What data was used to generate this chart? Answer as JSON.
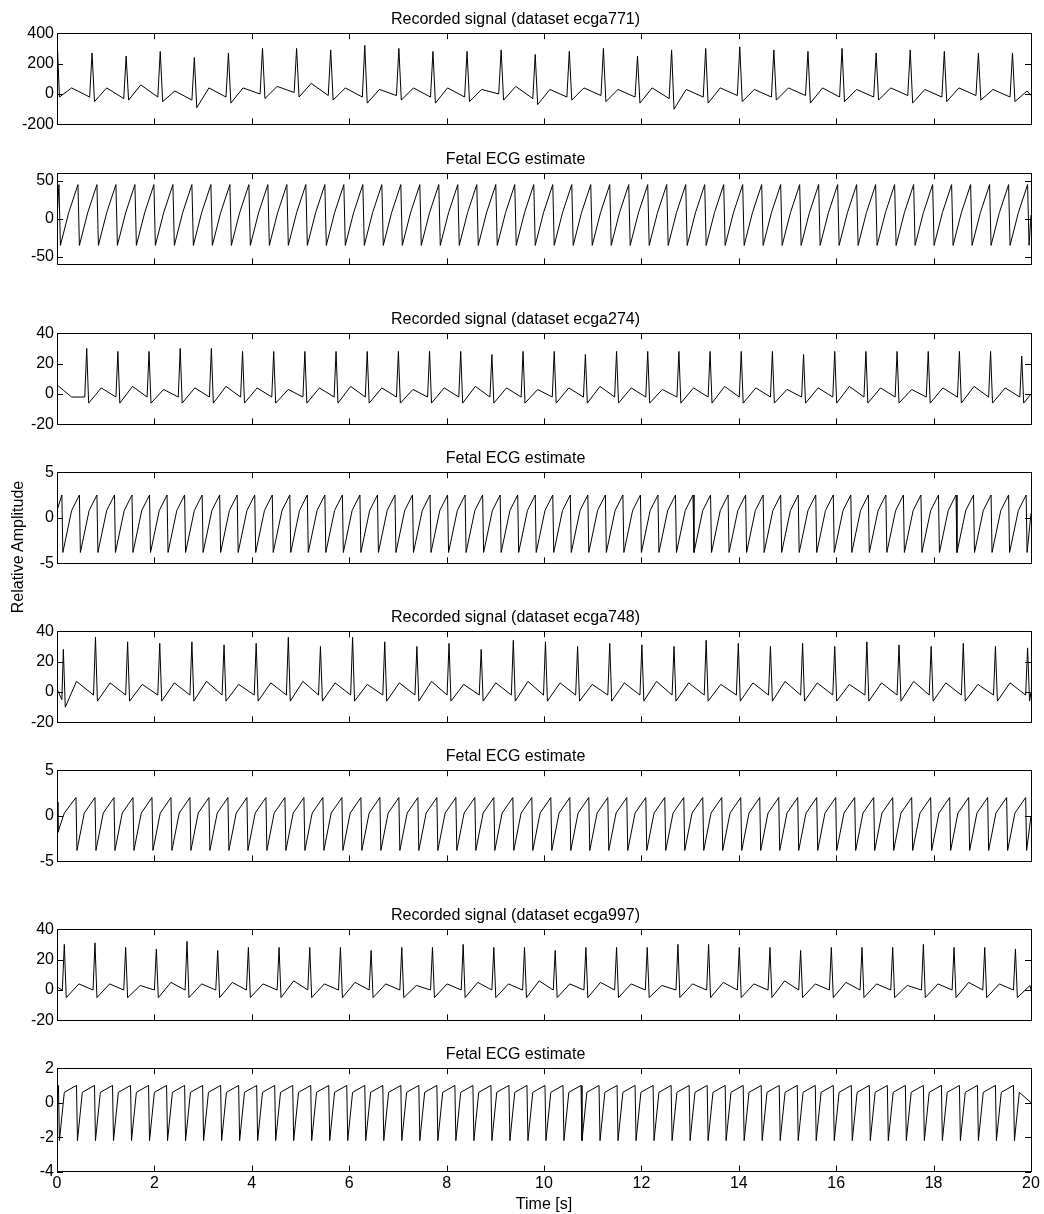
{
  "chart_data": [
    {
      "type": "line",
      "title": "Recorded signal (dataset ecga771)",
      "color": "#000000",
      "marker": "none",
      "tick_labels": "y",
      "xlim": [
        0,
        20
      ],
      "xticks": [
        0,
        2,
        4,
        6,
        8,
        10,
        12,
        14,
        16,
        18,
        20
      ],
      "ylim": [
        -200,
        400
      ],
      "yticks": [
        -200,
        0,
        200,
        400
      ],
      "x": [
        0,
        0.05,
        0.3,
        0.67,
        0.72,
        0.77,
        1.02,
        1.37,
        1.42,
        1.47,
        1.72,
        2.07,
        2.12,
        2.17,
        2.42,
        2.77,
        2.82,
        2.87,
        3.12,
        3.47,
        3.52,
        3.57,
        3.82,
        4.17,
        4.22,
        4.27,
        4.52,
        4.87,
        4.92,
        4.97,
        5.22,
        5.57,
        5.62,
        5.67,
        5.92,
        6.27,
        6.32,
        6.37,
        6.62,
        6.97,
        7.02,
        7.07,
        7.32,
        7.67,
        7.72,
        7.77,
        8.02,
        8.37,
        8.42,
        8.47,
        8.72,
        9.07,
        9.12,
        9.17,
        9.42,
        9.77,
        9.82,
        9.87,
        10.12,
        10.47,
        10.52,
        10.57,
        10.82,
        11.17,
        11.22,
        11.27,
        11.52,
        11.87,
        11.92,
        11.97,
        12.22,
        12.57,
        12.62,
        12.67,
        12.92,
        13.27,
        13.32,
        13.37,
        13.62,
        13.97,
        14.02,
        14.07,
        14.32,
        14.67,
        14.72,
        14.77,
        15.02,
        15.37,
        15.42,
        15.47,
        15.72,
        16.07,
        16.12,
        16.17,
        16.42,
        16.77,
        16.82,
        16.87,
        17.12,
        17.47,
        17.52,
        17.57,
        17.82,
        18.17,
        18.22,
        18.27,
        18.52,
        18.87,
        18.92,
        18.97,
        19.22,
        19.57,
        19.62,
        19.67,
        19.92,
        20
      ],
      "values": [
        380,
        -20,
        40,
        -20,
        270,
        -50,
        40,
        -30,
        250,
        -40,
        60,
        -20,
        280,
        -50,
        20,
        -40,
        240,
        -90,
        40,
        -20,
        270,
        -60,
        40,
        0,
        300,
        -30,
        50,
        10,
        300,
        -20,
        70,
        -10,
        290,
        -40,
        40,
        -20,
        320,
        -60,
        30,
        -10,
        300,
        -40,
        40,
        -20,
        280,
        -60,
        40,
        -20,
        280,
        -50,
        30,
        0,
        290,
        -40,
        50,
        -30,
        260,
        -70,
        30,
        -20,
        280,
        -40,
        40,
        -10,
        300,
        -50,
        30,
        -20,
        250,
        -60,
        40,
        -30,
        290,
        -100,
        30,
        -20,
        300,
        -60,
        40,
        -10,
        310,
        -50,
        30,
        -20,
        290,
        -40,
        40,
        -10,
        280,
        -60,
        40,
        -20,
        300,
        -50,
        30,
        -20,
        270,
        -40,
        40,
        -10,
        290,
        -60,
        30,
        -20,
        280,
        -50,
        40,
        -10,
        270,
        -40,
        30,
        -20,
        270,
        -50,
        20,
        -10
      ]
    },
    {
      "type": "line",
      "title": "Fetal ECG estimate",
      "color": "#000000",
      "marker": "none",
      "tick_labels": "y",
      "xlim": [
        0,
        20
      ],
      "xticks": [
        0,
        2,
        4,
        6,
        8,
        10,
        12,
        14,
        16,
        18,
        20
      ],
      "ylim": [
        -60,
        60
      ],
      "yticks": [
        -50,
        0,
        50
      ],
      "x": [
        0,
        0.04,
        0.07,
        0.24,
        0.43,
        0.46,
        0.63,
        0.82,
        0.85,
        1.02,
        1.21,
        1.24,
        1.41,
        1.6,
        1.63,
        1.8,
        1.99,
        2.02,
        2.19,
        2.38,
        2.41,
        2.58,
        2.77,
        2.8,
        2.97,
        3.16,
        3.19,
        3.36,
        3.55,
        3.58,
        3.75,
        3.94,
        3.97,
        4.14,
        4.33,
        4.36,
        4.53,
        4.72,
        4.75,
        4.92,
        5.11,
        5.14,
        5.31,
        5.5,
        5.53,
        5.7,
        5.89,
        5.92,
        6.09,
        6.28,
        6.31,
        6.48,
        6.67,
        6.7,
        6.87,
        7.06,
        7.09,
        7.26,
        7.45,
        7.48,
        7.65,
        7.84,
        7.87,
        8.04,
        8.23,
        8.26,
        8.43,
        8.62,
        8.65,
        8.82,
        9.01,
        9.04,
        9.21,
        9.4,
        9.43,
        9.6,
        9.79,
        9.82,
        9.99,
        10.18,
        10.21,
        10.38,
        10.57,
        10.6,
        10.77,
        10.96,
        10.99,
        11.16,
        11.35,
        11.38,
        11.55,
        11.74,
        11.77,
        11.94,
        12.13,
        12.16,
        12.33,
        12.52,
        12.55,
        12.72,
        12.91,
        12.94,
        13.11,
        13.3,
        13.33,
        13.5,
        13.69,
        13.72,
        13.89,
        14.08,
        14.11,
        14.28,
        14.47,
        14.5,
        14.67,
        14.86,
        14.89,
        15.06,
        15.25,
        15.28,
        15.45,
        15.64,
        15.67,
        15.84,
        16.03,
        16.06,
        16.23,
        16.42,
        16.45,
        16.62,
        16.81,
        16.84,
        17.01,
        17.2,
        17.23,
        17.4,
        17.59,
        17.62,
        17.79,
        17.98,
        18.01,
        18.18,
        18.37,
        18.4,
        18.57,
        18.76,
        18.79,
        18.96,
        19.15,
        19.18,
        19.35,
        19.54,
        19.57,
        19.74,
        19.93,
        19.96,
        20
      ],
      "values": [
        0,
        45,
        -35,
        8,
        45,
        -35,
        8,
        45,
        -35,
        8,
        45,
        -35,
        8,
        45,
        -35,
        8,
        45,
        -35,
        8,
        45,
        -35,
        8,
        45,
        -35,
        8,
        45,
        -35,
        8,
        45,
        -35,
        8,
        45,
        -35,
        8,
        45,
        -35,
        8,
        45,
        -35,
        8,
        45,
        -35,
        8,
        45,
        -35,
        8,
        45,
        -35,
        8,
        45,
        -35,
        8,
        45,
        -35,
        8,
        45,
        -35,
        8,
        45,
        -35,
        8,
        45,
        -35,
        8,
        45,
        -35,
        8,
        45,
        -35,
        8,
        45,
        -35,
        8,
        45,
        -35,
        8,
        45,
        -35,
        8,
        45,
        -35,
        8,
        45,
        -35,
        8,
        45,
        -35,
        8,
        45,
        -35,
        8,
        45,
        -35,
        8,
        45,
        -35,
        8,
        45,
        -35,
        8,
        45,
        -35,
        8,
        45,
        -35,
        8,
        45,
        -35,
        8,
        45,
        -35,
        8,
        45,
        -35,
        8,
        45,
        -35,
        8,
        45,
        -35,
        8,
        45,
        -35,
        8,
        45,
        -35,
        8,
        45,
        -35,
        8,
        45,
        -35,
        8,
        45,
        -35,
        8,
        45,
        -35,
        8,
        45,
        -35,
        8,
        45,
        -35,
        8,
        45,
        -35,
        8,
        45,
        -35,
        8,
        45,
        -35,
        8,
        45,
        -35,
        5
      ]
    },
    {
      "type": "line",
      "title": "Recorded signal (dataset ecga274)",
      "color": "#000000",
      "marker": "none",
      "tick_labels": "y",
      "xlim": [
        0,
        20
      ],
      "xticks": [
        0,
        2,
        4,
        6,
        8,
        10,
        12,
        14,
        16,
        18,
        20
      ],
      "ylim": [
        -20,
        40
      ],
      "yticks": [
        -20,
        0,
        20,
        40
      ],
      "x": [
        0,
        0.3,
        0.57,
        0.61,
        0.65,
        0.91,
        1.21,
        1.25,
        1.29,
        1.55,
        1.85,
        1.89,
        1.93,
        2.19,
        2.49,
        2.53,
        2.57,
        2.83,
        3.13,
        3.17,
        3.21,
        3.47,
        3.77,
        3.81,
        3.85,
        4.11,
        4.41,
        4.45,
        4.49,
        4.75,
        5.05,
        5.09,
        5.13,
        5.39,
        5.69,
        5.73,
        5.77,
        6.03,
        6.33,
        6.37,
        6.41,
        6.67,
        6.97,
        7.01,
        7.05,
        7.31,
        7.61,
        7.65,
        7.69,
        7.95,
        8.25,
        8.29,
        8.33,
        8.59,
        8.89,
        8.93,
        8.97,
        9.23,
        9.53,
        9.57,
        9.61,
        9.87,
        10.17,
        10.21,
        10.25,
        10.51,
        10.81,
        10.85,
        10.89,
        11.15,
        11.45,
        11.49,
        11.53,
        11.79,
        12.09,
        12.13,
        12.17,
        12.43,
        12.73,
        12.77,
        12.81,
        13.07,
        13.37,
        13.41,
        13.45,
        13.71,
        14.01,
        14.05,
        14.09,
        14.35,
        14.65,
        14.69,
        14.73,
        14.99,
        15.29,
        15.33,
        15.37,
        15.63,
        15.93,
        15.97,
        16.01,
        16.27,
        16.57,
        16.61,
        16.65,
        16.91,
        17.21,
        17.25,
        17.29,
        17.55,
        17.85,
        17.89,
        17.93,
        18.19,
        18.49,
        18.53,
        18.57,
        18.83,
        19.13,
        19.17,
        19.21,
        19.47,
        19.77,
        19.81,
        19.85,
        20
      ],
      "values": [
        6,
        -2,
        -2,
        30,
        -6,
        4,
        -2,
        28,
        -6,
        5,
        -2,
        28,
        -6,
        3,
        -2,
        30,
        -6,
        4,
        -2,
        30,
        -6,
        5,
        -2,
        28,
        -6,
        4,
        -2,
        28,
        -6,
        3,
        -2,
        28,
        -6,
        4,
        -2,
        28,
        -6,
        5,
        -2,
        28,
        -6,
        4,
        -2,
        28,
        -6,
        3,
        -2,
        28,
        -6,
        4,
        -2,
        28,
        -6,
        5,
        -2,
        26,
        -6,
        4,
        -2,
        28,
        -6,
        3,
        -2,
        28,
        -6,
        4,
        -2,
        26,
        -6,
        5,
        -2,
        28,
        -6,
        4,
        -2,
        28,
        -6,
        3,
        -2,
        28,
        -6,
        4,
        -2,
        28,
        -6,
        5,
        -2,
        28,
        -6,
        4,
        -2,
        28,
        -6,
        3,
        -2,
        26,
        -6,
        4,
        -2,
        28,
        -6,
        5,
        -2,
        28,
        -6,
        4,
        -2,
        28,
        -6,
        3,
        -2,
        28,
        -6,
        4,
        -2,
        28,
        -6,
        5,
        -2,
        28,
        -6,
        4,
        -2,
        25,
        -6,
        0
      ]
    },
    {
      "type": "line",
      "title": "Fetal ECG estimate",
      "ylabel": "Relative Amplitude",
      "color": "#000000",
      "marker": "none",
      "tick_labels": "y",
      "xlim": [
        0,
        20
      ],
      "xticks": [
        0,
        2,
        4,
        6,
        8,
        10,
        12,
        14,
        16,
        18,
        20
      ],
      "ylim": [
        -5,
        5
      ],
      "yticks": [
        -5,
        0,
        5
      ],
      "x": [
        0,
        0.1,
        0.12,
        0.3,
        0.46,
        0.48,
        0.66,
        0.82,
        0.84,
        1.02,
        1.18,
        1.2,
        1.38,
        1.54,
        1.56,
        1.74,
        1.9,
        1.92,
        2.1,
        2.26,
        2.28,
        2.46,
        2.62,
        2.64,
        2.82,
        2.98,
        3.0,
        3.18,
        3.34,
        3.36,
        3.54,
        3.7,
        3.72,
        3.9,
        4.06,
        4.08,
        4.26,
        4.42,
        4.44,
        4.62,
        4.78,
        4.8,
        4.98,
        5.14,
        5.16,
        5.34,
        5.5,
        5.52,
        5.7,
        5.86,
        5.88,
        6.06,
        6.22,
        6.24,
        6.42,
        6.58,
        6.6,
        6.78,
        6.94,
        6.96,
        7.14,
        7.3,
        7.32,
        7.5,
        7.66,
        7.68,
        7.86,
        8.02,
        8.04,
        8.22,
        8.38,
        8.4,
        8.58,
        8.74,
        8.76,
        8.94,
        9.1,
        9.12,
        9.3,
        9.46,
        9.48,
        9.66,
        9.82,
        9.84,
        10.02,
        10.18,
        10.2,
        10.38,
        10.54,
        10.56,
        10.74,
        10.9,
        10.92,
        11.1,
        11.26,
        11.28,
        11.46,
        11.62,
        11.64,
        11.82,
        11.98,
        12.0,
        12.18,
        12.34,
        12.36,
        12.54,
        12.7,
        12.72,
        12.9,
        13.06,
        13.08,
        13.26,
        13.42,
        13.44,
        13.62,
        13.78,
        13.8,
        13.98,
        14.14,
        14.16,
        14.34,
        14.5,
        14.52,
        14.7,
        14.86,
        14.88,
        15.06,
        15.22,
        15.24,
        15.42,
        15.58,
        15.6,
        15.78,
        15.94,
        15.96,
        16.14,
        16.3,
        16.32,
        16.5,
        16.66,
        16.68,
        16.86,
        17.02,
        17.04,
        17.22,
        17.38,
        17.4,
        17.58,
        17.74,
        17.76,
        17.94,
        18.1,
        18.12,
        18.3,
        18.46,
        18.48,
        18.66,
        18.82,
        18.84,
        19.02,
        19.18,
        19.2,
        19.38,
        19.54,
        19.56,
        19.74,
        19.9,
        19.92,
        20
      ],
      "values": [
        0.8,
        2.5,
        -3.8,
        0.8,
        2.5,
        -3.8,
        0.8,
        2.5,
        -3.8,
        0.8,
        2.5,
        -3.8,
        0.8,
        2.5,
        -3.8,
        0.8,
        2.5,
        -3.8,
        0.8,
        2.5,
        -3.8,
        0.8,
        2.5,
        -3.8,
        0.8,
        2.5,
        -3.8,
        0.8,
        2.5,
        -3.8,
        0.8,
        2.5,
        -3.8,
        0.8,
        2.5,
        -3.8,
        0.8,
        2.5,
        -3.8,
        0.8,
        2.5,
        -3.8,
        0.8,
        2.5,
        -3.8,
        0.8,
        2.5,
        -3.8,
        0.8,
        2.5,
        -3.8,
        0.8,
        2.5,
        -3.8,
        0.8,
        2.5,
        -3.8,
        0.8,
        2.5,
        -3.8,
        0.8,
        2.5,
        -3.8,
        0.8,
        2.5,
        -3.8,
        0.8,
        2.5,
        -3.8,
        0.8,
        2.5,
        -3.8,
        0.8,
        2.5,
        -3.8,
        0.8,
        2.5,
        -3.8,
        0.8,
        2.5,
        -3.8,
        0.8,
        2.5,
        -3.8,
        0.8,
        2.5,
        -3.8,
        0.8,
        2.5,
        -3.8,
        0.8,
        2.5,
        -3.8,
        0.8,
        2.5,
        -3.8,
        0.8,
        2.5,
        -3.8,
        0.8,
        2.5,
        -3.8,
        0.8,
        2.5,
        -3.8,
        0.8,
        2.5,
        -3.8,
        0.8,
        2.5,
        -3.8,
        0.8,
        2.5,
        -3.8,
        0.8,
        2.5,
        -3.8,
        0.8,
        2.5,
        -3.8,
        0.8,
        2.5,
        -3.8,
        0.8,
        2.5,
        -3.8,
        0.8,
        2.5,
        -3.8,
        0.8,
        2.5,
        -3.8,
        0.8,
        2.5,
        -3.8,
        0.8,
        2.5,
        -3.8,
        0.8,
        2.5,
        -3.8,
        0.8,
        2.5,
        -3.8,
        0.8,
        2.5,
        -3.8,
        0.8,
        2.5,
        -3.8,
        0.8,
        2.5,
        -3.8,
        0.8,
        2.5,
        -3.8,
        0.8,
        2.5,
        -3.8,
        0.8,
        2.5,
        -3.8,
        0.8,
        2.5,
        -3.8,
        0.8,
        2.5,
        -3.8,
        0.5
      ]
    },
    {
      "type": "line",
      "title": "Recorded signal (dataset ecga748)",
      "color": "#000000",
      "marker": "none",
      "tick_labels": "y",
      "xlim": [
        0,
        20
      ],
      "xticks": [
        0,
        2,
        4,
        6,
        8,
        10,
        12,
        14,
        16,
        18,
        20
      ],
      "ylim": [
        -20,
        40
      ],
      "yticks": [
        -20,
        0,
        20,
        40
      ],
      "x": [
        0,
        0.1,
        0.13,
        0.17,
        0.4,
        0.75,
        0.79,
        0.83,
        1.09,
        1.41,
        1.45,
        1.49,
        1.75,
        2.07,
        2.11,
        2.15,
        2.41,
        2.73,
        2.77,
        2.81,
        3.07,
        3.39,
        3.43,
        3.47,
        3.73,
        4.05,
        4.09,
        4.13,
        4.39,
        4.71,
        4.75,
        4.79,
        5.05,
        5.37,
        5.41,
        5.45,
        5.71,
        6.03,
        6.07,
        6.11,
        6.37,
        6.69,
        6.73,
        6.77,
        7.03,
        7.35,
        7.39,
        7.43,
        7.69,
        8.01,
        8.05,
        8.09,
        8.35,
        8.67,
        8.71,
        8.75,
        9.01,
        9.33,
        9.37,
        9.41,
        9.67,
        9.99,
        10.03,
        10.07,
        10.33,
        10.65,
        10.69,
        10.73,
        10.99,
        11.31,
        11.35,
        11.39,
        11.65,
        11.97,
        12.01,
        12.05,
        12.31,
        12.63,
        12.67,
        12.71,
        12.97,
        13.29,
        13.33,
        13.37,
        13.63,
        13.95,
        13.99,
        14.03,
        14.29,
        14.61,
        14.65,
        14.69,
        14.95,
        15.27,
        15.31,
        15.35,
        15.61,
        15.93,
        15.97,
        16.01,
        16.27,
        16.59,
        16.63,
        16.67,
        16.93,
        17.25,
        17.29,
        17.33,
        17.59,
        17.91,
        17.95,
        17.99,
        18.25,
        18.57,
        18.61,
        18.65,
        18.91,
        19.23,
        19.27,
        19.31,
        19.57,
        19.89,
        19.93,
        19.97,
        20
      ],
      "values": [
        2,
        -5,
        28,
        -10,
        7,
        -2,
        36,
        -6,
        6,
        -2,
        33,
        -6,
        5,
        -2,
        32,
        -6,
        6,
        -2,
        33,
        -6,
        7,
        -2,
        31,
        -6,
        5,
        -2,
        32,
        -6,
        6,
        -2,
        36,
        -6,
        7,
        -2,
        30,
        -6,
        6,
        -2,
        36,
        -6,
        5,
        -2,
        33,
        -6,
        6,
        -2,
        30,
        -6,
        7,
        -2,
        32,
        -6,
        5,
        -2,
        28,
        -6,
        6,
        -2,
        34,
        -6,
        7,
        -2,
        33,
        -6,
        6,
        -2,
        30,
        -6,
        5,
        -2,
        32,
        -6,
        6,
        -2,
        31,
        -6,
        7,
        -2,
        30,
        -6,
        6,
        -2,
        34,
        -6,
        5,
        -2,
        32,
        -6,
        6,
        -2,
        30,
        -6,
        7,
        -2,
        32,
        -6,
        6,
        -2,
        30,
        -6,
        5,
        -2,
        33,
        -6,
        6,
        -2,
        31,
        -6,
        7,
        -2,
        30,
        -6,
        6,
        -2,
        32,
        -6,
        5,
        -2,
        30,
        -6,
        6,
        -2,
        29,
        -6,
        0
      ]
    },
    {
      "type": "line",
      "title": "Fetal ECG estimate",
      "color": "#000000",
      "marker": "none",
      "tick_labels": "y",
      "xlim": [
        0,
        20
      ],
      "xticks": [
        0,
        2,
        4,
        6,
        8,
        10,
        12,
        14,
        16,
        18,
        20
      ],
      "ylim": [
        -5,
        5
      ],
      "yticks": [
        -5,
        0,
        5
      ],
      "x": [
        0,
        0.02,
        0.15,
        0.39,
        0.41,
        0.56,
        0.78,
        0.8,
        0.95,
        1.17,
        1.19,
        1.34,
        1.56,
        1.58,
        1.73,
        1.95,
        1.97,
        2.12,
        2.34,
        2.36,
        2.51,
        2.73,
        2.75,
        2.9,
        3.12,
        3.14,
        3.29,
        3.51,
        3.53,
        3.68,
        3.9,
        3.92,
        4.07,
        4.29,
        4.31,
        4.46,
        4.68,
        4.7,
        4.85,
        5.07,
        5.09,
        5.24,
        5.46,
        5.48,
        5.63,
        5.85,
        5.87,
        6.02,
        6.24,
        6.26,
        6.41,
        6.63,
        6.65,
        6.8,
        7.02,
        7.04,
        7.19,
        7.41,
        7.43,
        7.58,
        7.8,
        7.82,
        7.97,
        8.19,
        8.21,
        8.36,
        8.58,
        8.6,
        8.75,
        8.97,
        8.99,
        9.14,
        9.36,
        9.38,
        9.53,
        9.75,
        9.77,
        9.92,
        10.14,
        10.16,
        10.31,
        10.53,
        10.55,
        10.7,
        10.92,
        10.94,
        11.09,
        11.31,
        11.33,
        11.48,
        11.7,
        11.72,
        11.87,
        12.09,
        12.11,
        12.26,
        12.48,
        12.5,
        12.65,
        12.87,
        12.89,
        13.04,
        13.26,
        13.28,
        13.43,
        13.65,
        13.67,
        13.82,
        14.04,
        14.06,
        14.21,
        14.43,
        14.45,
        14.6,
        14.82,
        14.84,
        14.99,
        15.21,
        15.23,
        15.38,
        15.6,
        15.62,
        15.77,
        15.99,
        16.01,
        16.16,
        16.38,
        16.4,
        16.55,
        16.77,
        16.79,
        16.94,
        17.16,
        17.18,
        17.33,
        17.55,
        17.57,
        17.72,
        17.94,
        17.96,
        18.11,
        18.33,
        18.35,
        18.5,
        18.72,
        18.74,
        18.89,
        19.11,
        19.13,
        19.28,
        19.5,
        19.52,
        19.67,
        19.89,
        19.91,
        20
      ],
      "values": [
        1.5,
        -1.8,
        0.3,
        2,
        -3.8,
        0.3,
        2,
        -3.8,
        0.3,
        2,
        -3.8,
        0.3,
        2,
        -3.8,
        0.3,
        2,
        -3.8,
        0.3,
        2,
        -3.8,
        0.3,
        2,
        -3.8,
        0.3,
        2,
        -3.8,
        0.3,
        2,
        -3.8,
        0.3,
        2,
        -3.8,
        0.3,
        2,
        -3.8,
        0.3,
        2,
        -3.8,
        0.3,
        2,
        -3.8,
        0.3,
        2,
        -3.8,
        0.3,
        2,
        -3.8,
        0.3,
        2,
        -3.8,
        0.3,
        2,
        -3.8,
        0.3,
        2,
        -3.8,
        0.3,
        2,
        -3.8,
        0.3,
        2,
        -3.8,
        0.3,
        2,
        -3.8,
        0.3,
        2,
        -3.8,
        0.3,
        2,
        -3.8,
        0.3,
        2,
        -3.8,
        0.3,
        2,
        -3.8,
        0.3,
        2,
        -3.8,
        0.3,
        2,
        -3.8,
        0.3,
        2,
        -3.8,
        0.3,
        2,
        -3.8,
        0.3,
        2,
        -3.8,
        0.3,
        2,
        -3.8,
        0.3,
        2,
        -3.8,
        0.3,
        2,
        -3.8,
        0.3,
        2,
        -3.8,
        0.3,
        2,
        -3.8,
        0.3,
        2,
        -3.8,
        0.3,
        2,
        -3.8,
        0.3,
        2,
        -3.8,
        0.3,
        2,
        -3.8,
        0.3,
        2,
        -3.8,
        0.3,
        2,
        -3.8,
        0.3,
        2,
        -3.8,
        0.3,
        2,
        -3.8,
        0.3,
        2,
        -3.8,
        0.3,
        2,
        -3.8,
        0.3,
        2,
        -3.8,
        0.3,
        2,
        -3.8,
        0.3,
        2,
        -3.8,
        0.3,
        2,
        -3.8,
        0.3,
        2,
        -3.8,
        0.3,
        2,
        -3.8,
        0
      ]
    },
    {
      "type": "line",
      "title": "Recorded signal (dataset ecga997)",
      "color": "#000000",
      "marker": "none",
      "tick_labels": "y",
      "xlim": [
        0,
        20
      ],
      "xticks": [
        0,
        2,
        4,
        6,
        8,
        10,
        12,
        14,
        16,
        18,
        20
      ],
      "ylim": [
        -20,
        40
      ],
      "yticks": [
        -20,
        0,
        20,
        40
      ],
      "x": [
        0,
        0.11,
        0.15,
        0.19,
        0.45,
        0.74,
        0.78,
        0.82,
        1.08,
        1.37,
        1.41,
        1.45,
        1.71,
        2.0,
        2.04,
        2.08,
        2.34,
        2.63,
        2.67,
        2.71,
        2.97,
        3.26,
        3.3,
        3.34,
        3.6,
        3.89,
        3.93,
        3.97,
        4.23,
        4.52,
        4.56,
        4.6,
        4.86,
        5.15,
        5.19,
        5.23,
        5.49,
        5.78,
        5.82,
        5.86,
        6.12,
        6.41,
        6.45,
        6.49,
        6.75,
        7.04,
        7.08,
        7.12,
        7.38,
        7.67,
        7.71,
        7.75,
        8.01,
        8.3,
        8.34,
        8.38,
        8.64,
        8.93,
        8.97,
        9.01,
        9.27,
        9.56,
        9.6,
        9.64,
        9.9,
        10.19,
        10.23,
        10.27,
        10.53,
        10.82,
        10.86,
        10.9,
        11.16,
        11.45,
        11.49,
        11.53,
        11.79,
        12.08,
        12.12,
        12.16,
        12.42,
        12.71,
        12.75,
        12.79,
        13.05,
        13.34,
        13.38,
        13.42,
        13.68,
        13.97,
        14.01,
        14.05,
        14.31,
        14.6,
        14.64,
        14.68,
        14.94,
        15.23,
        15.27,
        15.31,
        15.57,
        15.86,
        15.9,
        15.94,
        16.2,
        16.49,
        16.53,
        16.57,
        16.83,
        17.12,
        17.16,
        17.2,
        17.46,
        17.75,
        17.79,
        17.83,
        18.09,
        18.38,
        18.42,
        18.46,
        18.72,
        19.01,
        19.05,
        19.09,
        19.35,
        19.64,
        19.68,
        19.72,
        19.98,
        20
      ],
      "values": [
        2,
        0,
        30,
        -5,
        4,
        0,
        31,
        -5,
        4,
        0,
        28,
        -5,
        3,
        0,
        27,
        -5,
        5,
        0,
        32,
        -5,
        4,
        0,
        26,
        -5,
        5,
        0,
        28,
        -5,
        4,
        0,
        28,
        -5,
        6,
        0,
        28,
        -5,
        4,
        0,
        28,
        -5,
        5,
        0,
        26,
        -5,
        4,
        0,
        28,
        -5,
        3,
        0,
        28,
        -5,
        4,
        0,
        30,
        -5,
        5,
        0,
        28,
        -5,
        4,
        0,
        28,
        -5,
        6,
        0,
        26,
        -5,
        4,
        0,
        28,
        -5,
        5,
        0,
        28,
        -5,
        4,
        0,
        28,
        -5,
        3,
        0,
        30,
        -5,
        4,
        0,
        30,
        -5,
        5,
        0,
        28,
        -5,
        4,
        0,
        28,
        -5,
        6,
        0,
        26,
        -5,
        4,
        0,
        28,
        -5,
        5,
        0,
        28,
        -5,
        4,
        0,
        28,
        -5,
        3,
        0,
        30,
        -5,
        4,
        0,
        28,
        -5,
        5,
        0,
        28,
        -5,
        4,
        0,
        27,
        -5,
        3,
        0
      ]
    },
    {
      "type": "line",
      "title": "Fetal ECG estimate",
      "xlabel": "Time [s]",
      "color": "#000000",
      "marker": "none",
      "xlim": [
        0,
        20
      ],
      "xticks": [
        0,
        2,
        4,
        6,
        8,
        10,
        12,
        14,
        16,
        18,
        20
      ],
      "ylim": [
        -4,
        2
      ],
      "yticks": [
        -4,
        -2,
        0,
        2
      ],
      "x": [
        0,
        0.03,
        0.05,
        0.15,
        0.4,
        0.42,
        0.52,
        0.77,
        0.79,
        0.89,
        1.14,
        1.16,
        1.26,
        1.51,
        1.53,
        1.63,
        1.88,
        1.9,
        2.0,
        2.25,
        2.27,
        2.37,
        2.62,
        2.64,
        2.74,
        2.99,
        3.01,
        3.11,
        3.36,
        3.38,
        3.48,
        3.73,
        3.75,
        3.85,
        4.1,
        4.12,
        4.22,
        4.47,
        4.49,
        4.59,
        4.84,
        4.86,
        4.96,
        5.21,
        5.23,
        5.33,
        5.58,
        5.6,
        5.7,
        5.95,
        5.97,
        6.07,
        6.32,
        6.34,
        6.44,
        6.69,
        6.71,
        6.81,
        7.06,
        7.08,
        7.18,
        7.43,
        7.45,
        7.55,
        7.8,
        7.82,
        7.92,
        8.17,
        8.19,
        8.29,
        8.54,
        8.56,
        8.66,
        8.91,
        8.93,
        9.03,
        9.28,
        9.3,
        9.4,
        9.65,
        9.67,
        9.77,
        10.02,
        10.04,
        10.14,
        10.39,
        10.41,
        10.51,
        10.76,
        10.78,
        10.88,
        11.13,
        11.15,
        11.25,
        11.5,
        11.52,
        11.62,
        11.87,
        11.89,
        11.99,
        12.24,
        12.26,
        12.36,
        12.61,
        12.63,
        12.73,
        12.98,
        13.0,
        13.1,
        13.35,
        13.37,
        13.47,
        13.72,
        13.74,
        13.84,
        14.09,
        14.11,
        14.21,
        14.46,
        14.48,
        14.58,
        14.83,
        14.85,
        14.95,
        15.2,
        15.22,
        15.32,
        15.57,
        15.59,
        15.69,
        15.94,
        15.96,
        16.06,
        16.31,
        16.33,
        16.43,
        16.68,
        16.7,
        16.8,
        17.05,
        17.07,
        17.17,
        17.42,
        17.44,
        17.54,
        17.79,
        17.81,
        17.91,
        18.16,
        18.18,
        18.28,
        18.53,
        18.55,
        18.65,
        18.9,
        18.92,
        19.02,
        19.27,
        19.29,
        19.39,
        19.64,
        19.66,
        19.76,
        20
      ],
      "values": [
        0,
        1,
        -2.2,
        0.6,
        1,
        -2.2,
        0.6,
        1,
        -2.2,
        0.6,
        1,
        -2.2,
        0.6,
        1,
        -2.2,
        0.6,
        1,
        -2.2,
        0.6,
        1,
        -2.2,
        0.6,
        1,
        -2.2,
        0.6,
        1,
        -2.2,
        0.6,
        1,
        -2.2,
        0.6,
        1,
        -2.2,
        0.6,
        1,
        -2.2,
        0.6,
        1,
        -2.2,
        0.6,
        1,
        -2.2,
        0.6,
        1,
        -2.2,
        0.6,
        1,
        -2.2,
        0.6,
        1,
        -2.2,
        0.6,
        1,
        -2.2,
        0.6,
        1,
        -2.2,
        0.6,
        1,
        -2.2,
        0.6,
        1,
        -2.2,
        0.6,
        1,
        -2.2,
        0.6,
        1,
        -2.2,
        0.6,
        1,
        -2.2,
        0.6,
        1,
        -2.2,
        0.6,
        1,
        -2.2,
        0.6,
        1,
        -2.2,
        0.6,
        1,
        -2.2,
        0.6,
        1,
        -2.2,
        0.6,
        1,
        -2.2,
        0.6,
        1,
        -2.2,
        0.6,
        1,
        -2.2,
        0.6,
        1,
        -2.2,
        0.6,
        1,
        -2.2,
        0.6,
        1,
        -2.2,
        0.6,
        1,
        -2.2,
        0.6,
        1,
        -2.2,
        0.6,
        1,
        -2.2,
        0.6,
        1,
        -2.2,
        0.6,
        1,
        -2.2,
        0.6,
        1,
        -2.2,
        0.6,
        1,
        -2.2,
        0.6,
        1,
        -2.2,
        0.6,
        1,
        -2.2,
        0.6,
        1,
        -2.2,
        0.6,
        1,
        -2.2,
        0.6,
        1,
        -2.2,
        0.6,
        1,
        -2.2,
        0.6,
        1,
        -2.2,
        0.6,
        1,
        -2.2,
        0.6,
        1,
        -2.2,
        0.6,
        1,
        -2.2,
        0.6,
        1,
        -2.2,
        0.6,
        1,
        -2.2,
        0.6,
        0
      ]
    }
  ]
}
